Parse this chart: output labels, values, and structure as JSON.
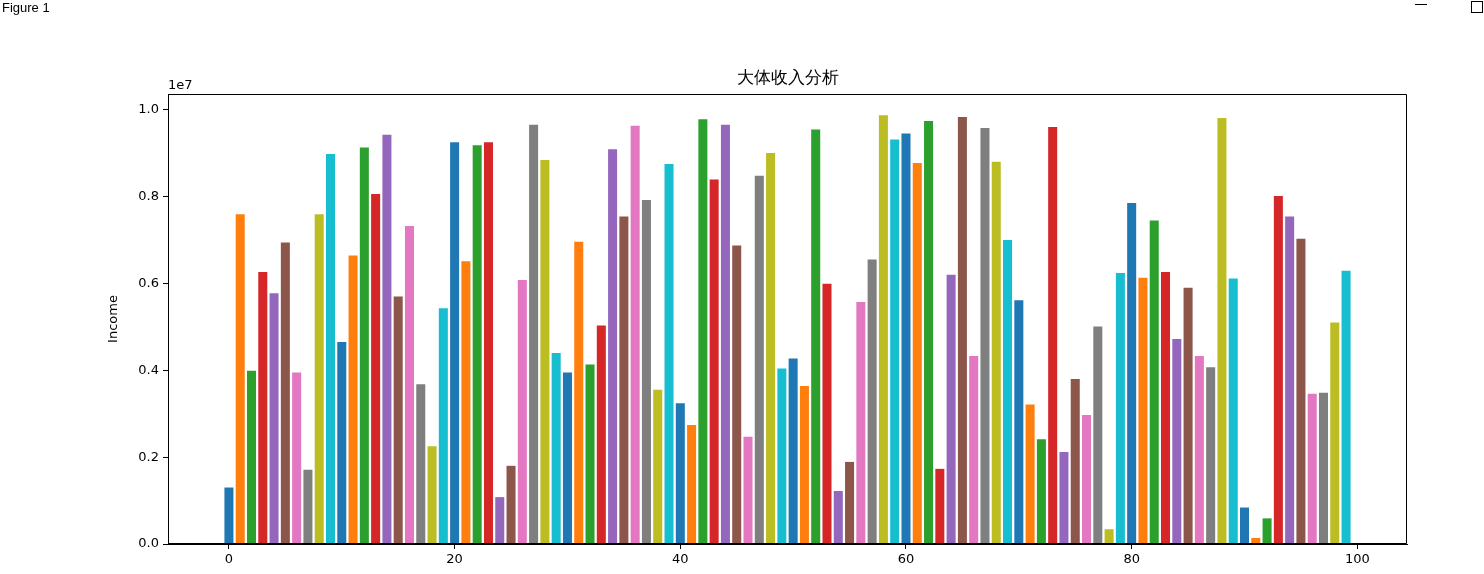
{
  "chart_data": {
    "type": "bar",
    "title": "大体收入分析",
    "ylabel": "Income",
    "annotations": [
      "1e7",
      "Figure 1"
    ],
    "x": [
      0,
      1,
      2,
      3,
      4,
      5,
      6,
      7,
      8,
      9,
      10,
      11,
      12,
      13,
      14,
      15,
      16,
      17,
      18,
      19,
      20,
      21,
      22,
      23,
      24,
      25,
      26,
      27,
      28,
      29,
      30,
      31,
      32,
      33,
      34,
      35,
      36,
      37,
      38,
      39,
      40,
      41,
      42,
      43,
      44,
      45,
      46,
      47,
      48,
      49,
      50,
      51,
      52,
      53,
      54,
      55,
      56,
      57,
      58,
      59,
      60,
      61,
      62,
      63,
      64,
      65,
      66,
      67,
      68,
      69,
      70,
      71,
      72,
      73,
      74,
      75,
      76,
      77,
      78,
      79,
      80,
      81,
      82,
      83,
      84,
      85,
      86,
      87,
      88,
      89,
      90,
      91,
      92,
      93,
      94,
      95,
      96,
      97,
      98,
      99
    ],
    "values": [
      0.13,
      0.759,
      0.399,
      0.626,
      0.577,
      0.694,
      0.395,
      0.171,
      0.759,
      0.898,
      0.465,
      0.664,
      0.913,
      0.806,
      0.942,
      0.57,
      0.732,
      0.368,
      0.225,
      0.543,
      0.925,
      0.651,
      0.918,
      0.925,
      0.108,
      0.18,
      0.608,
      0.965,
      0.884,
      0.44,
      0.395,
      0.696,
      0.413,
      0.503,
      0.909,
      0.754,
      0.963,
      0.792,
      0.355,
      0.875,
      0.324,
      0.274,
      0.978,
      0.839,
      0.965,
      0.687,
      0.247,
      0.848,
      0.9,
      0.404,
      0.427,
      0.364,
      0.954,
      0.599,
      0.122,
      0.189,
      0.557,
      0.655,
      0.987,
      0.931,
      0.945,
      0.877,
      0.974,
      0.173,
      0.62,
      0.983,
      0.433,
      0.958,
      0.88,
      0.7,
      0.561,
      0.321,
      0.241,
      0.96,
      0.212,
      0.38,
      0.297,
      0.501,
      0.034,
      0.624,
      0.785,
      0.613,
      0.745,
      0.626,
      0.472,
      0.59,
      0.433,
      0.407,
      0.981,
      0.611,
      0.084,
      0.014,
      0.059,
      0.801,
      0.754,
      0.703,
      0.346,
      0.348,
      0.51,
      0.629
    ],
    "colors": [
      "#1f77b4",
      "#ff7f0e",
      "#2ca02c",
      "#d62728",
      "#9467bd",
      "#8c564b",
      "#e377c2",
      "#7f7f7f",
      "#bcbd22",
      "#17becf",
      "#1f77b4",
      "#ff7f0e",
      "#2ca02c",
      "#d62728",
      "#9467bd",
      "#8c564b",
      "#e377c2",
      "#7f7f7f",
      "#bcbd22",
      "#17becf",
      "#1f77b4",
      "#ff7f0e",
      "#2ca02c",
      "#d62728",
      "#9467bd",
      "#8c564b",
      "#e377c2",
      "#7f7f7f",
      "#bcbd22",
      "#17becf",
      "#1f77b4",
      "#ff7f0e",
      "#2ca02c",
      "#d62728",
      "#9467bd",
      "#8c564b",
      "#e377c2",
      "#7f7f7f",
      "#bcbd22",
      "#17becf",
      "#1f77b4",
      "#ff7f0e",
      "#2ca02c",
      "#d62728",
      "#9467bd",
      "#8c564b",
      "#e377c2",
      "#7f7f7f",
      "#bcbd22",
      "#17becf",
      "#1f77b4",
      "#ff7f0e",
      "#2ca02c",
      "#d62728",
      "#9467bd",
      "#8c564b",
      "#e377c2",
      "#7f7f7f",
      "#bcbd22",
      "#17becf",
      "#1f77b4",
      "#ff7f0e",
      "#2ca02c",
      "#d62728",
      "#9467bd",
      "#8c564b",
      "#e377c2",
      "#7f7f7f",
      "#bcbd22",
      "#17becf",
      "#1f77b4",
      "#ff7f0e",
      "#2ca02c",
      "#d62728",
      "#9467bd",
      "#8c564b",
      "#e377c2",
      "#7f7f7f",
      "#bcbd22",
      "#17becf",
      "#1f77b4",
      "#ff7f0e",
      "#2ca02c",
      "#d62728",
      "#9467bd",
      "#8c564b",
      "#e377c2",
      "#7f7f7f",
      "#bcbd22",
      "#17becf",
      "#1f77b4",
      "#ff7f0e",
      "#2ca02c",
      "#d62728",
      "#9467bd",
      "#8c564b",
      "#e377c2",
      "#7f7f7f",
      "#bcbd22",
      "#17becf"
    ],
    "xlim": [
      -5.4,
      104.4
    ],
    "xticks": [
      0,
      20,
      40,
      60,
      80,
      100
    ],
    "ylim": [
      0,
      1.036
    ],
    "yticks": [
      {
        "value": 0,
        "label": "0.0"
      },
      0.2,
      0.4,
      0.6,
      0.8,
      {
        "value": 1,
        "label": "1.0"
      }
    ]
  }
}
